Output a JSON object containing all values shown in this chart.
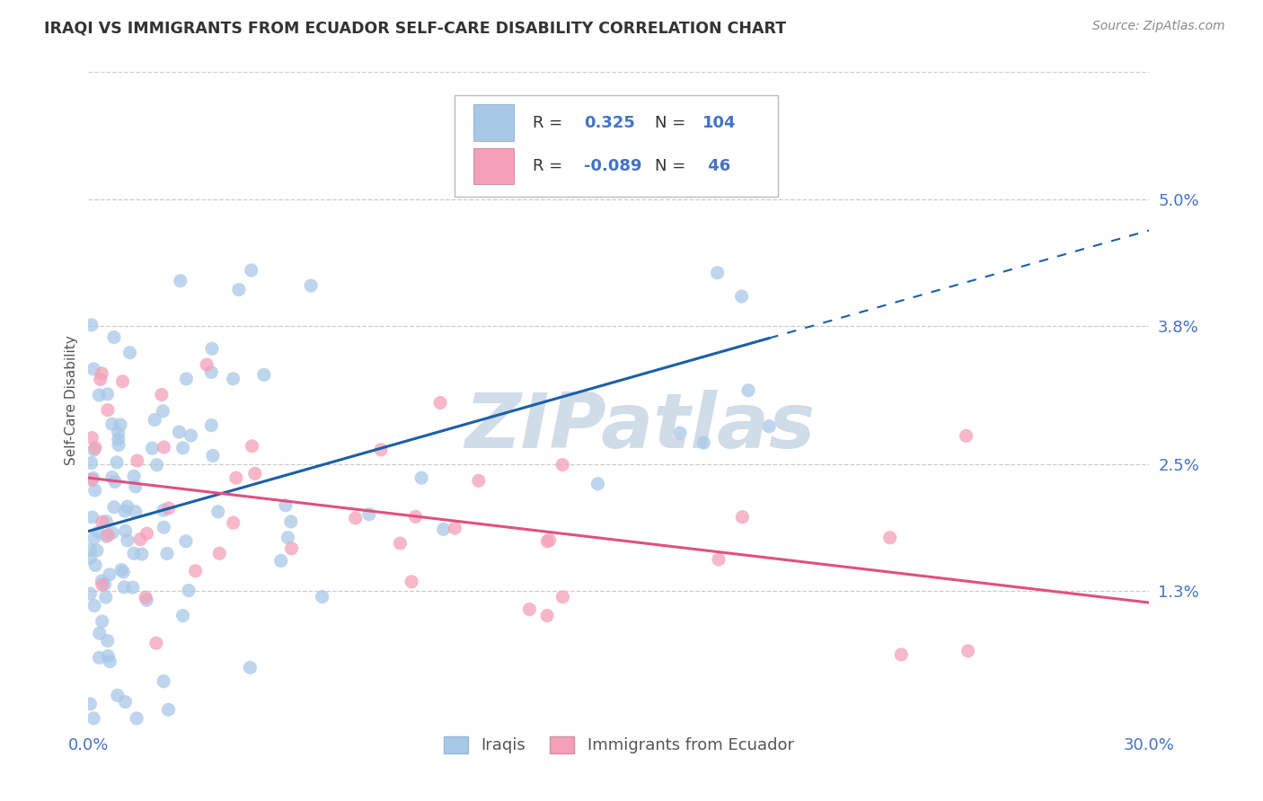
{
  "title": "IRAQI VS IMMIGRANTS FROM ECUADOR SELF-CARE DISABILITY CORRELATION CHART",
  "source_text": "Source: ZipAtlas.com",
  "ylabel": "Self-Care Disability",
  "xlim": [
    0.0,
    0.3
  ],
  "ylim": [
    0.0,
    0.062
  ],
  "xtick_vals": [
    0.0,
    0.3
  ],
  "xtick_labels": [
    "0.0%",
    "30.0%"
  ],
  "ytick_vals": [
    0.013,
    0.025,
    0.038,
    0.05
  ],
  "ytick_labels": [
    "1.3%",
    "2.5%",
    "3.8%",
    "5.0%"
  ],
  "blue_color": "#a8c8e8",
  "pink_color": "#f4a0b8",
  "blue_line_color": "#1a5fa8",
  "pink_line_color": "#e05080",
  "blue_R": 0.325,
  "blue_N": 104,
  "pink_R": -0.089,
  "pink_N": 46,
  "watermark": "ZIPatlas",
  "watermark_color": "#d0dce8",
  "tick_color": "#4472c4",
  "text_color": "#333333",
  "label_color": "#555555",
  "grid_color": "#cccccc"
}
